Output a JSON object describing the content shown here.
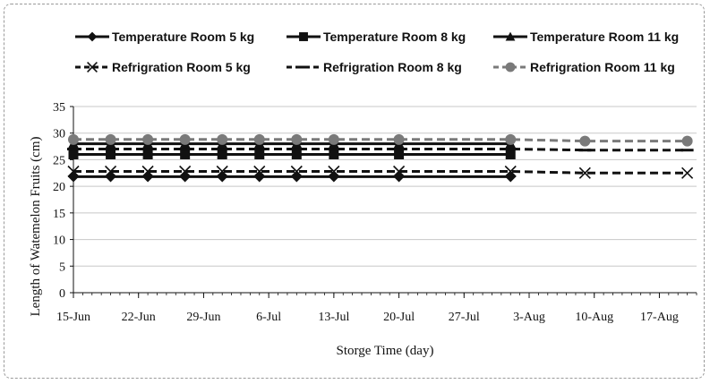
{
  "chart_data": {
    "type": "line",
    "title": "",
    "xlabel": "Storge Time (day)",
    "ylabel": "Length of Watemelon Fruits (cm)",
    "ylim": [
      0,
      35
    ],
    "yticks": [
      0,
      5,
      10,
      15,
      20,
      25,
      30,
      35
    ],
    "x_range": [
      "2024-06-15",
      "2024-08-21"
    ],
    "x_tick_labels": [
      "15-Jun",
      "22-Jun",
      "29-Jun",
      "6-Jul",
      "13-Jul",
      "20-Jul",
      "27-Jul",
      "3-Aug",
      "10-Aug",
      "17-Aug"
    ],
    "x_tick_dates": [
      "2024-06-15",
      "2024-06-22",
      "2024-06-29",
      "2024-07-06",
      "2024-07-13",
      "2024-07-20",
      "2024-07-27",
      "2024-08-03",
      "2024-08-10",
      "2024-08-17"
    ],
    "grid": "horizontal",
    "legend_placement": "top",
    "series": [
      {
        "name": "Temperature Room 5 kg",
        "line": "solid",
        "marker": "diamond",
        "color": "#111111",
        "x": [
          "2024-06-15",
          "2024-06-19",
          "2024-06-23",
          "2024-06-27",
          "2024-07-01",
          "2024-07-05",
          "2024-07-09",
          "2024-07-13",
          "2024-07-20",
          "2024-08-01"
        ],
        "values": [
          21.8,
          21.8,
          21.8,
          21.8,
          21.8,
          21.8,
          21.8,
          21.8,
          21.8,
          21.8
        ]
      },
      {
        "name": "Temperature Room 8 kg",
        "line": "solid",
        "marker": "square",
        "color": "#111111",
        "x": [
          "2024-06-15",
          "2024-06-19",
          "2024-06-23",
          "2024-06-27",
          "2024-07-01",
          "2024-07-05",
          "2024-07-09",
          "2024-07-13",
          "2024-07-20",
          "2024-08-01"
        ],
        "values": [
          26.0,
          26.0,
          26.0,
          26.0,
          26.0,
          26.0,
          26.0,
          26.0,
          26.0,
          26.0
        ]
      },
      {
        "name": "Temperature Room 11 kg",
        "line": "solid",
        "marker": "triangle",
        "color": "#111111",
        "x": [
          "2024-06-15",
          "2024-06-19",
          "2024-06-23",
          "2024-06-27",
          "2024-07-01",
          "2024-07-05",
          "2024-07-09",
          "2024-07-13",
          "2024-07-20",
          "2024-08-01"
        ],
        "values": [
          28.0,
          28.0,
          28.0,
          28.0,
          28.0,
          28.0,
          28.0,
          28.0,
          28.0,
          28.0
        ]
      },
      {
        "name": "Refrigration Room 5 kg",
        "line": "dashed",
        "marker": "x",
        "color": "#111111",
        "x": [
          "2024-06-15",
          "2024-06-19",
          "2024-06-23",
          "2024-06-27",
          "2024-07-01",
          "2024-07-05",
          "2024-07-09",
          "2024-07-13",
          "2024-07-20",
          "2024-08-01",
          "2024-08-09",
          "2024-08-20"
        ],
        "values": [
          22.8,
          22.8,
          22.8,
          22.8,
          22.8,
          22.8,
          22.8,
          22.8,
          22.8,
          22.8,
          22.5,
          22.5
        ]
      },
      {
        "name": "Refrigration Room 8 kg",
        "line": "dashed",
        "marker": "dash",
        "color": "#111111",
        "x": [
          "2024-06-15",
          "2024-06-19",
          "2024-06-23",
          "2024-06-27",
          "2024-07-01",
          "2024-07-05",
          "2024-07-09",
          "2024-07-13",
          "2024-07-20",
          "2024-08-01",
          "2024-08-09",
          "2024-08-20"
        ],
        "values": [
          27.0,
          27.0,
          27.0,
          27.0,
          27.0,
          27.0,
          27.0,
          27.0,
          27.0,
          27.0,
          26.8,
          26.8
        ]
      },
      {
        "name": "Refrigration Room 11 kg",
        "line": "dashed",
        "marker": "circle",
        "color": "#7a7a7a",
        "x": [
          "2024-06-15",
          "2024-06-19",
          "2024-06-23",
          "2024-06-27",
          "2024-07-01",
          "2024-07-05",
          "2024-07-09",
          "2024-07-13",
          "2024-07-20",
          "2024-08-01",
          "2024-08-09",
          "2024-08-20"
        ],
        "values": [
          28.8,
          28.8,
          28.8,
          28.8,
          28.8,
          28.8,
          28.8,
          28.8,
          28.8,
          28.8,
          28.5,
          28.5
        ]
      }
    ]
  }
}
